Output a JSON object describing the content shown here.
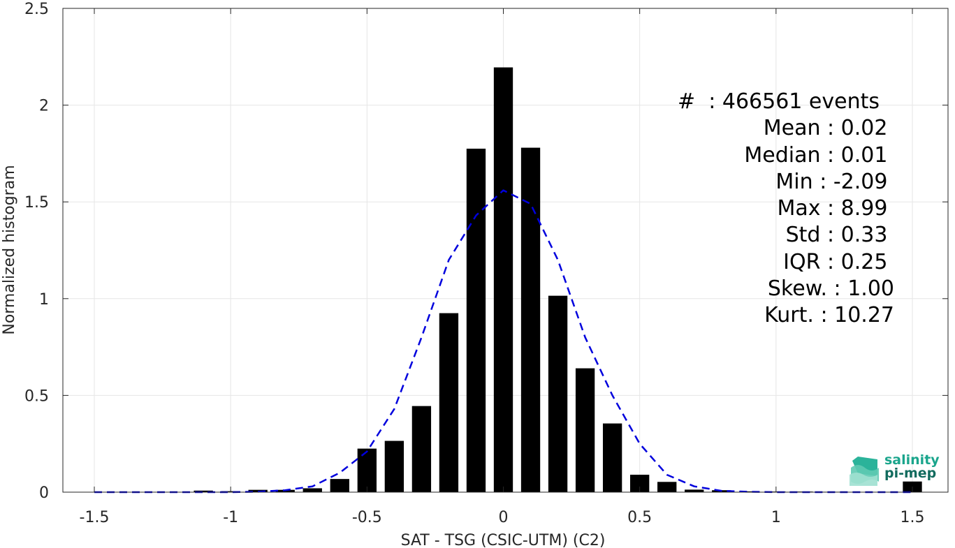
{
  "chart_data": {
    "type": "bar",
    "xlabel": "SAT - TSG (CSIC-UTM) (C2)",
    "ylabel": "Normalized histogram",
    "xlim": [
      -1.5,
      1.5
    ],
    "ylim": [
      0,
      2.5
    ],
    "grid": true,
    "x_ticks": [
      "-1.5",
      "-1",
      "-0.5",
      "0",
      "0.5",
      "1",
      "1.5"
    ],
    "y_ticks": [
      "0",
      "0.5",
      "1",
      "1.5",
      "2",
      "2.5"
    ],
    "bar_width": 0.07,
    "series": [
      {
        "kind": "histogram",
        "color": "#000000",
        "x": [
          -1.1,
          -1.0,
          -0.9,
          -0.8,
          -0.7,
          -0.6,
          -0.5,
          -0.4,
          -0.3,
          -0.2,
          -0.1,
          0.0,
          0.1,
          0.2,
          0.3,
          0.4,
          0.5,
          0.6,
          0.7,
          0.8,
          0.9,
          1.0,
          1.1,
          1.2,
          1.5
        ],
        "values": [
          0.008,
          0.005,
          0.012,
          0.012,
          0.02,
          0.068,
          0.225,
          0.265,
          0.445,
          0.925,
          1.775,
          2.195,
          1.78,
          1.015,
          0.64,
          0.355,
          0.09,
          0.053,
          0.013,
          0.01,
          0.004,
          0.003,
          0.003,
          0.002,
          0.055
        ]
      },
      {
        "kind": "fit-curve",
        "style": "dashed",
        "color": "#0000dd",
        "x": [
          -1.5,
          -1.4,
          -1.3,
          -1.2,
          -1.1,
          -1.0,
          -0.9,
          -0.8,
          -0.7,
          -0.6,
          -0.5,
          -0.4,
          -0.3,
          -0.2,
          -0.1,
          0.0,
          0.1,
          0.2,
          0.3,
          0.4,
          0.5,
          0.6,
          0.7,
          0.8,
          0.9,
          1.0,
          1.1,
          1.2,
          1.3,
          1.4,
          1.5
        ],
        "values": [
          0.0,
          0.0,
          0.0,
          0.0,
          0.0,
          0.0,
          0.002,
          0.01,
          0.03,
          0.1,
          0.21,
          0.43,
          0.8,
          1.2,
          1.43,
          1.56,
          1.49,
          1.2,
          0.8,
          0.5,
          0.25,
          0.09,
          0.03,
          0.007,
          0.002,
          0.0,
          0.0,
          0.0,
          0.0,
          0.0,
          0.0
        ]
      }
    ]
  },
  "stats": [
    "#  : 466561 events",
    "Mean : 0.02 ",
    "Median : 0.01 ",
    "Min : -2.09 ",
    "Max : 8.99 ",
    "Std : 0.33 ",
    "IQR : 0.25 ",
    "Skew. : 1.00",
    "Kurt. : 10.27"
  ],
  "logo": {
    "line1": "salinity",
    "line2": "pi-mep",
    "color1": "#1aa58c",
    "color2": "#126b5e"
  }
}
